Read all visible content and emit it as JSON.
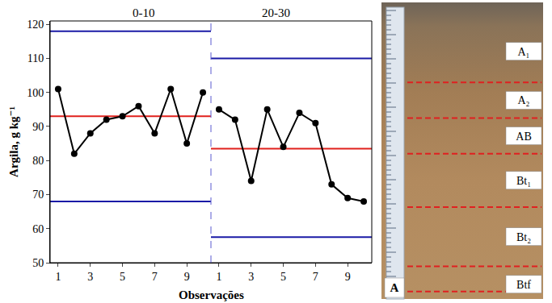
{
  "chart_data": {
    "type": "line",
    "y_label": "Argila, g kg⁻¹",
    "x_label": "Observações",
    "x": [
      1,
      2,
      3,
      4,
      5,
      6,
      7,
      8,
      9,
      10
    ],
    "xlim": [
      0.5,
      10.5
    ],
    "xticks": [
      1,
      3,
      5,
      7,
      9
    ],
    "ylim": [
      50,
      121
    ],
    "yticks": [
      50,
      60,
      70,
      80,
      90,
      100,
      110,
      120
    ],
    "grid": false,
    "marker": "circle",
    "color": "#000000",
    "panels": [
      {
        "title": "0-10",
        "values": [
          101,
          82,
          88,
          92,
          93,
          96,
          88,
          101,
          85,
          100
        ],
        "limits": {
          "center": 93,
          "upper": 118,
          "lower": 68
        }
      },
      {
        "title": "20-30",
        "values": [
          95,
          92,
          74,
          95,
          84,
          94,
          91,
          73,
          69,
          68
        ],
        "limits": {
          "center": 83.5,
          "upper": 110,
          "lower": 57.5
        }
      }
    ]
  },
  "photo": {
    "label": "A",
    "horizons": [
      "A₁",
      "A₂",
      "AB",
      "Bt₁",
      "Bt₂",
      "Btf"
    ]
  }
}
